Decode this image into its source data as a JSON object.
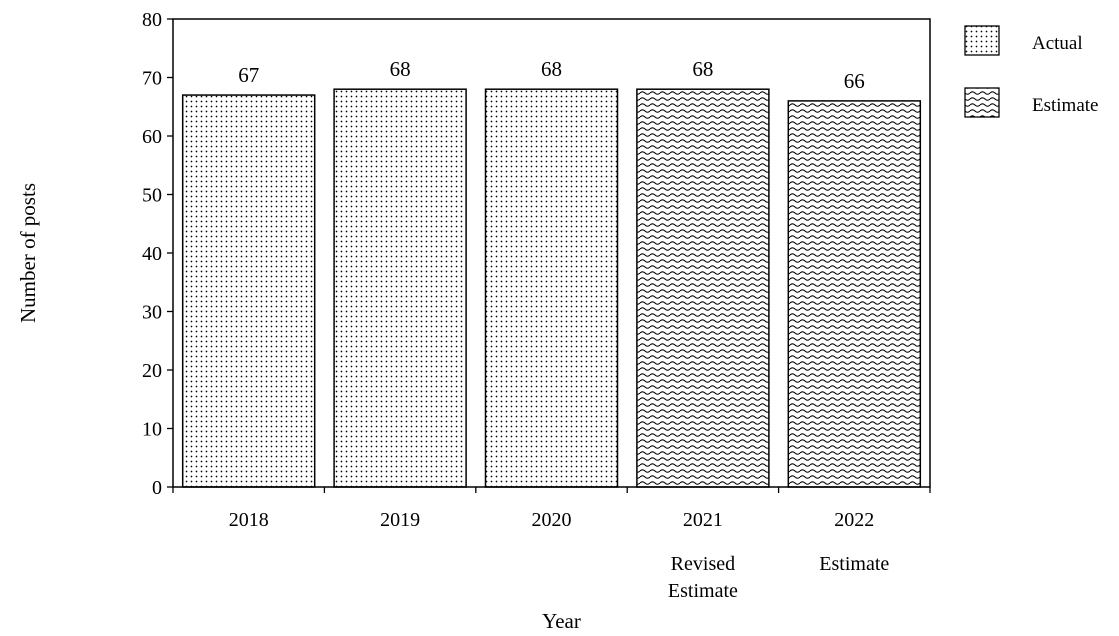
{
  "chart_data": {
    "type": "bar",
    "categories": [
      "2018",
      "2019",
      "2020",
      "2021",
      "2022"
    ],
    "category_sublabels": [
      "",
      "",
      "",
      "Revised\nEstimate",
      "Estimate"
    ],
    "series": [
      {
        "name": "Actual",
        "pattern": "dots",
        "values": [
          67,
          68,
          68,
          null,
          null
        ]
      },
      {
        "name": "Estimate",
        "pattern": "waves",
        "values": [
          null,
          null,
          null,
          68,
          66
        ]
      }
    ],
    "data_labels": [
      "67",
      "68",
      "68",
      "68",
      "66"
    ],
    "title": "",
    "xlabel": "Year",
    "ylabel": "Number of posts",
    "ylim": [
      0,
      80
    ],
    "yticks": [
      0,
      10,
      20,
      30,
      40,
      50,
      60,
      70,
      80
    ],
    "grid": false,
    "legend_position": "top-right",
    "colors": {
      "bar_fill": "#ffffff",
      "pattern": "#000000",
      "stroke": "#000000"
    }
  }
}
